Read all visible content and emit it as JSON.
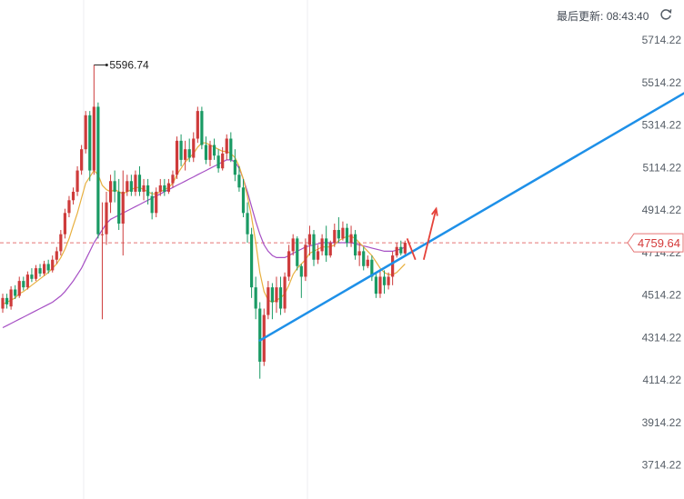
{
  "header": {
    "update_label": "最后更新:",
    "update_time": "08:43:40"
  },
  "price_tag": "4759.64",
  "chart_data": {
    "type": "candlestick",
    "title": "",
    "xlabel": "",
    "ylabel": "",
    "ylim": [
      3660,
      5770
    ],
    "y_ticks": [
      "5714.22",
      "5514.22",
      "5314.22",
      "5114.22",
      "4914.22",
      "4714.22",
      "4514.22",
      "4314.22",
      "4114.22",
      "3914.22",
      "3714.22"
    ],
    "y_tick_values": [
      5714.22,
      5514.22,
      5314.22,
      5114.22,
      4914.22,
      4714.22,
      4514.22,
      4314.22,
      4114.22,
      3914.22,
      3714.22
    ],
    "grid": "vertical only",
    "current_price": 4759.64,
    "high_annotation": {
      "label": "5596.74",
      "value": 5596.74,
      "bar_index": 22
    },
    "candles": [
      [
        4450,
        4500,
        4430,
        4520
      ],
      [
        4500,
        4470,
        4450,
        4520
      ],
      [
        4460,
        4540,
        4445,
        4555
      ],
      [
        4540,
        4510,
        4495,
        4560
      ],
      [
        4510,
        4580,
        4500,
        4600
      ],
      [
        4580,
        4550,
        4535,
        4600
      ],
      [
        4550,
        4610,
        4540,
        4625
      ],
      [
        4610,
        4590,
        4575,
        4640
      ],
      [
        4590,
        4640,
        4580,
        4655
      ],
      [
        4640,
        4615,
        4600,
        4660
      ],
      [
        4615,
        4660,
        4605,
        4675
      ],
      [
        4660,
        4630,
        4615,
        4680
      ],
      [
        4630,
        4680,
        4620,
        4700
      ],
      [
        4680,
        4720,
        4660,
        4740
      ],
      [
        4720,
        4800,
        4700,
        4820
      ],
      [
        4800,
        4900,
        4780,
        4920
      ],
      [
        4900,
        4960,
        4880,
        4980
      ],
      [
        4960,
        5000,
        4940,
        5020
      ],
      [
        5000,
        5100,
        4980,
        5120
      ],
      [
        5100,
        5200,
        5080,
        5220
      ],
      [
        5200,
        5360,
        5180,
        5380
      ],
      [
        5360,
        5100,
        5050,
        5380
      ],
      [
        5100,
        5400,
        5080,
        5596.74
      ],
      [
        5400,
        4800,
        4780,
        5420
      ],
      [
        4800,
        4800,
        4400,
        4950
      ],
      [
        4800,
        4950,
        4750,
        5000
      ],
      [
        4950,
        5050,
        4900,
        5080
      ],
      [
        5050,
        5000,
        4950,
        5100
      ],
      [
        5000,
        4850,
        4820,
        5060
      ],
      [
        4850,
        5000,
        4700,
        5100
      ],
      [
        5000,
        5050,
        4980,
        5080
      ],
      [
        5050,
        5000,
        4980,
        5080
      ],
      [
        5000,
        5080,
        4980,
        5100
      ],
      [
        5080,
        5000,
        4980,
        5120
      ],
      [
        5000,
        5030,
        4960,
        5060
      ],
      [
        5030,
        4980,
        4940,
        5060
      ],
      [
        4980,
        4900,
        4870,
        5000
      ],
      [
        4900,
        5000,
        4880,
        5020
      ],
      [
        5000,
        5030,
        4980,
        5060
      ],
      [
        5030,
        5000,
        4980,
        5060
      ],
      [
        5000,
        5040,
        4990,
        5060
      ],
      [
        5040,
        5080,
        5020,
        5100
      ],
      [
        5080,
        5240,
        5060,
        5260
      ],
      [
        5240,
        5150,
        5120,
        5270
      ],
      [
        5150,
        5200,
        5100,
        5240
      ],
      [
        5200,
        5160,
        5140,
        5250
      ],
      [
        5160,
        5250,
        5140,
        5280
      ],
      [
        5250,
        5380,
        5230,
        5400
      ],
      [
        5380,
        5220,
        5200,
        5400
      ],
      [
        5220,
        5150,
        5130,
        5260
      ],
      [
        5150,
        5220,
        5120,
        5240
      ],
      [
        5220,
        5170,
        5150,
        5250
      ],
      [
        5170,
        5110,
        5090,
        5200
      ],
      [
        5110,
        5180,
        5100,
        5210
      ],
      [
        5180,
        5250,
        5150,
        5270
      ],
      [
        5250,
        5150,
        5140,
        5280
      ],
      [
        5150,
        5080,
        5050,
        5200
      ],
      [
        5080,
        5020,
        5000,
        5120
      ],
      [
        5020,
        4900,
        4880,
        5060
      ],
      [
        4900,
        4800,
        4760,
        4950
      ],
      [
        4800,
        4550,
        4500,
        4830
      ],
      [
        4550,
        4450,
        4400,
        4600
      ],
      [
        4450,
        4200,
        4120,
        4480
      ],
      [
        4200,
        4420,
        4180,
        4450
      ],
      [
        4420,
        4550,
        4400,
        4580
      ],
      [
        4550,
        4480,
        4400,
        4570
      ],
      [
        4480,
        4550,
        4430,
        4600
      ],
      [
        4550,
        4450,
        4420,
        4600
      ],
      [
        4450,
        4600,
        4430,
        4620
      ],
      [
        4600,
        4720,
        4580,
        4750
      ],
      [
        4720,
        4780,
        4700,
        4800
      ],
      [
        4780,
        4650,
        4630,
        4790
      ],
      [
        4650,
        4600,
        4500,
        4660
      ],
      [
        4600,
        4750,
        4580,
        4780
      ],
      [
        4750,
        4800,
        4700,
        4840
      ],
      [
        4800,
        4680,
        4650,
        4820
      ],
      [
        4680,
        4720,
        4660,
        4750
      ],
      [
        4720,
        4780,
        4700,
        4800
      ],
      [
        4780,
        4700,
        4670,
        4840
      ],
      [
        4700,
        4760,
        4690,
        4770
      ],
      [
        4760,
        4820,
        4740,
        4850
      ],
      [
        4820,
        4780,
        4760,
        4880
      ],
      [
        4780,
        4830,
        4770,
        4860
      ],
      [
        4830,
        4760,
        4740,
        4850
      ],
      [
        4760,
        4800,
        4740,
        4840
      ],
      [
        4800,
        4700,
        4680,
        4820
      ],
      [
        4700,
        4720,
        4650,
        4760
      ],
      [
        4720,
        4650,
        4630,
        4740
      ],
      [
        4650,
        4680,
        4640,
        4700
      ],
      [
        4680,
        4600,
        4580,
        4700
      ],
      [
        4600,
        4520,
        4500,
        4620
      ],
      [
        4520,
        4600,
        4500,
        4630
      ],
      [
        4600,
        4560,
        4520,
        4630
      ],
      [
        4560,
        4600,
        4540,
        4620
      ],
      [
        4600,
        4700,
        4560,
        4720
      ],
      [
        4700,
        4740,
        4690,
        4760
      ],
      [
        4740,
        4710,
        4700,
        4770
      ],
      [
        4710,
        4760,
        4700,
        4770
      ]
    ],
    "ma_short": [
      4470,
      4480,
      4490,
      4500,
      4520,
      4530,
      4545,
      4560,
      4575,
      4590,
      4605,
      4620,
      4640,
      4660,
      4690,
      4730,
      4780,
      4840,
      4900,
      4970,
      5040,
      5070,
      5100,
      5080,
      5030,
      5010,
      5000,
      5010,
      5000,
      4990,
      5000,
      5010,
      5020,
      5020,
      5010,
      5000,
      4990,
      4990,
      5000,
      5010,
      5020,
      5040,
      5080,
      5110,
      5140,
      5160,
      5180,
      5210,
      5230,
      5230,
      5220,
      5210,
      5200,
      5190,
      5190,
      5180,
      5160,
      5120,
      5060,
      4980,
      4880,
      4760,
      4620,
      4530,
      4490,
      4480,
      4490,
      4500,
      4520,
      4560,
      4610,
      4640,
      4660,
      4680,
      4710,
      4720,
      4730,
      4740,
      4740,
      4740,
      4750,
      4770,
      4780,
      4790,
      4790,
      4780,
      4760,
      4740,
      4720,
      4700,
      4670,
      4640,
      4620,
      4610,
      4610,
      4620,
      4640,
      4660
    ],
    "ma_long": [
      4360,
      4370,
      4380,
      4390,
      4400,
      4410,
      4420,
      4430,
      4440,
      4450,
      4460,
      4470,
      4480,
      4495,
      4510,
      4530,
      4555,
      4580,
      4610,
      4640,
      4680,
      4720,
      4760,
      4790,
      4820,
      4850,
      4870,
      4880,
      4890,
      4900,
      4910,
      4920,
      4930,
      4940,
      4950,
      4960,
      4970,
      4980,
      4990,
      5000,
      5010,
      5020,
      5030,
      5040,
      5050,
      5060,
      5070,
      5080,
      5090,
      5100,
      5110,
      5120,
      5130,
      5140,
      5150,
      5150,
      5140,
      5110,
      5060,
      5000,
      4930,
      4860,
      4800,
      4750,
      4720,
      4700,
      4690,
      4690,
      4690,
      4700,
      4710,
      4720,
      4730,
      4740,
      4745,
      4750,
      4755,
      4760,
      4760,
      4760,
      4760,
      4760,
      4760,
      4760,
      4760,
      4755,
      4750,
      4745,
      4740,
      4735,
      4730,
      4725,
      4720,
      4720,
      4720,
      4725,
      4730,
      4740
    ],
    "trendline": [
      [
        62,
        4300
      ],
      [
        120,
        4960
      ]
    ],
    "arrows": [
      {
        "from": [
          97.5,
          4780
        ],
        "to": [
          99.5,
          4680
        ],
        "color": "#e5423a"
      },
      {
        "from": [
          101.5,
          4680
        ],
        "to": [
          104.5,
          4920
        ],
        "color": "#e5423a"
      }
    ]
  }
}
